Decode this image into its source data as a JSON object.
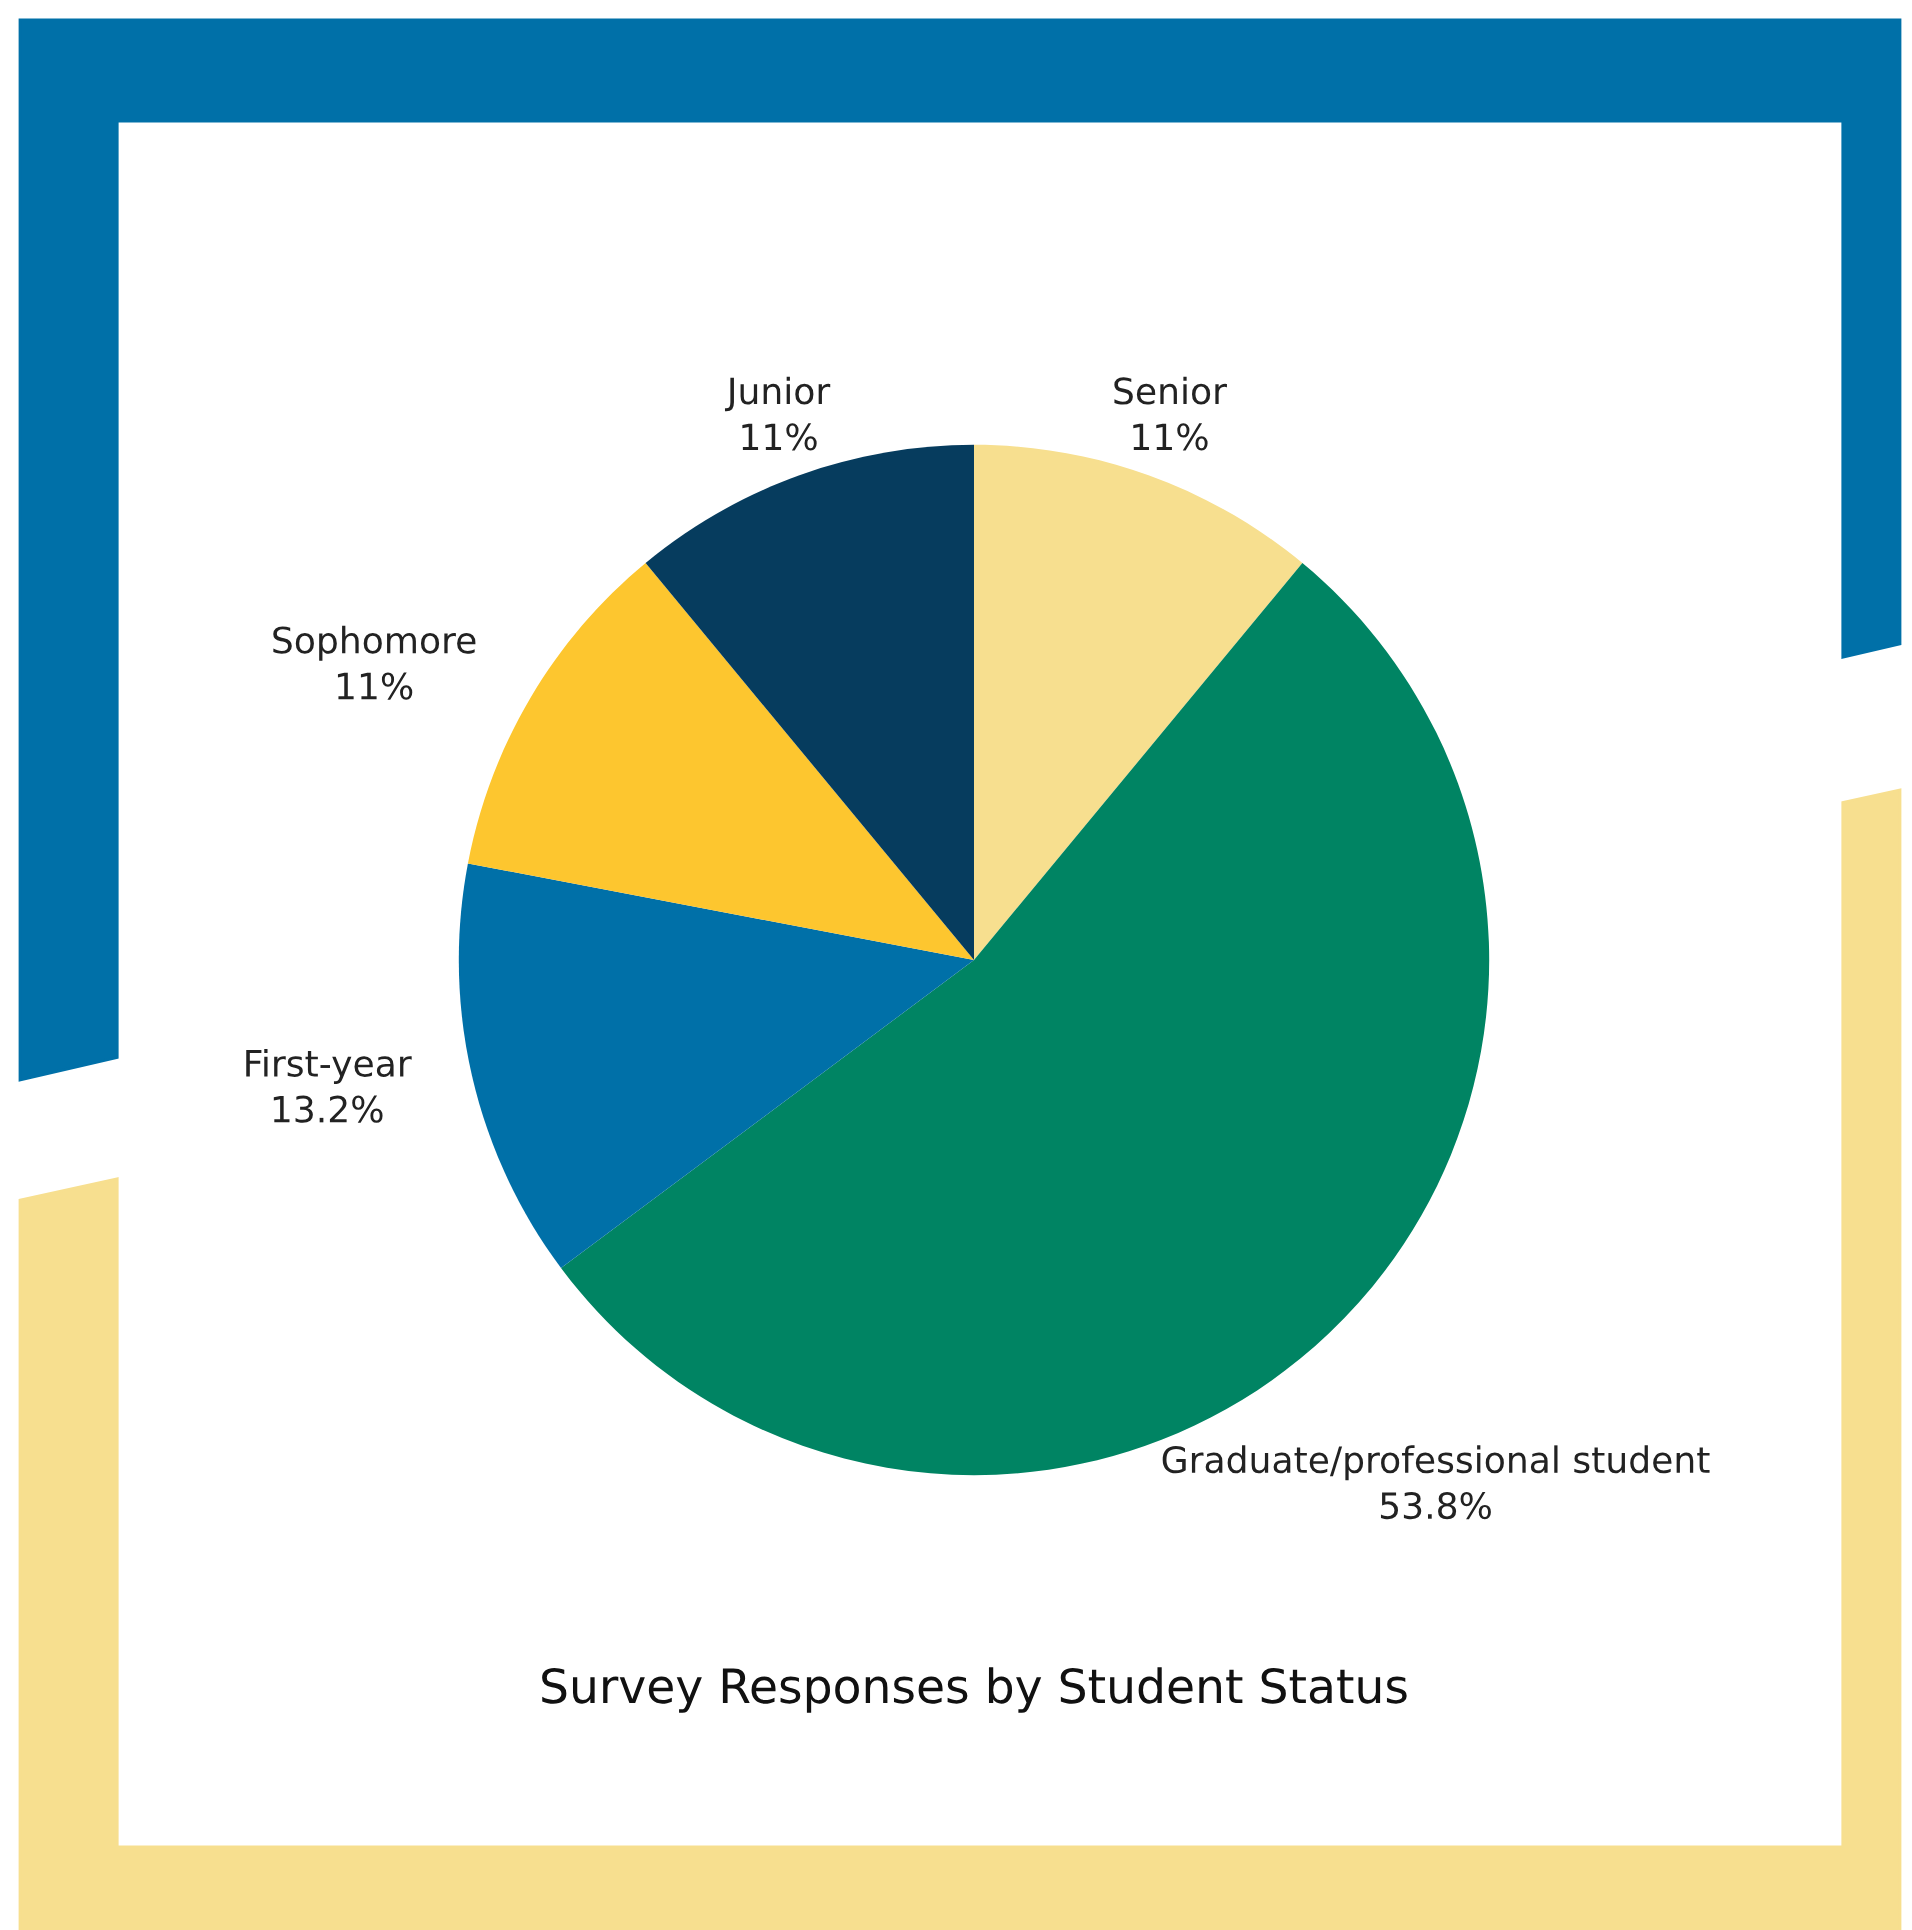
{
  "chart_data": {
    "type": "pie",
    "title": "Survey Responses by Student Status",
    "categories": [
      "Senior",
      "Graduate/professional student",
      "First-year",
      "Sophomore",
      "Junior"
    ],
    "values": [
      11,
      53.8,
      13.2,
      11,
      11
    ],
    "value_labels": [
      "11%",
      "53.8%",
      "13.2%",
      "11%",
      "11%"
    ],
    "colors": [
      "#f7df8f",
      "#008463",
      "#0070a8",
      "#fdc62f",
      "#063c5e"
    ],
    "legend": false
  }
}
